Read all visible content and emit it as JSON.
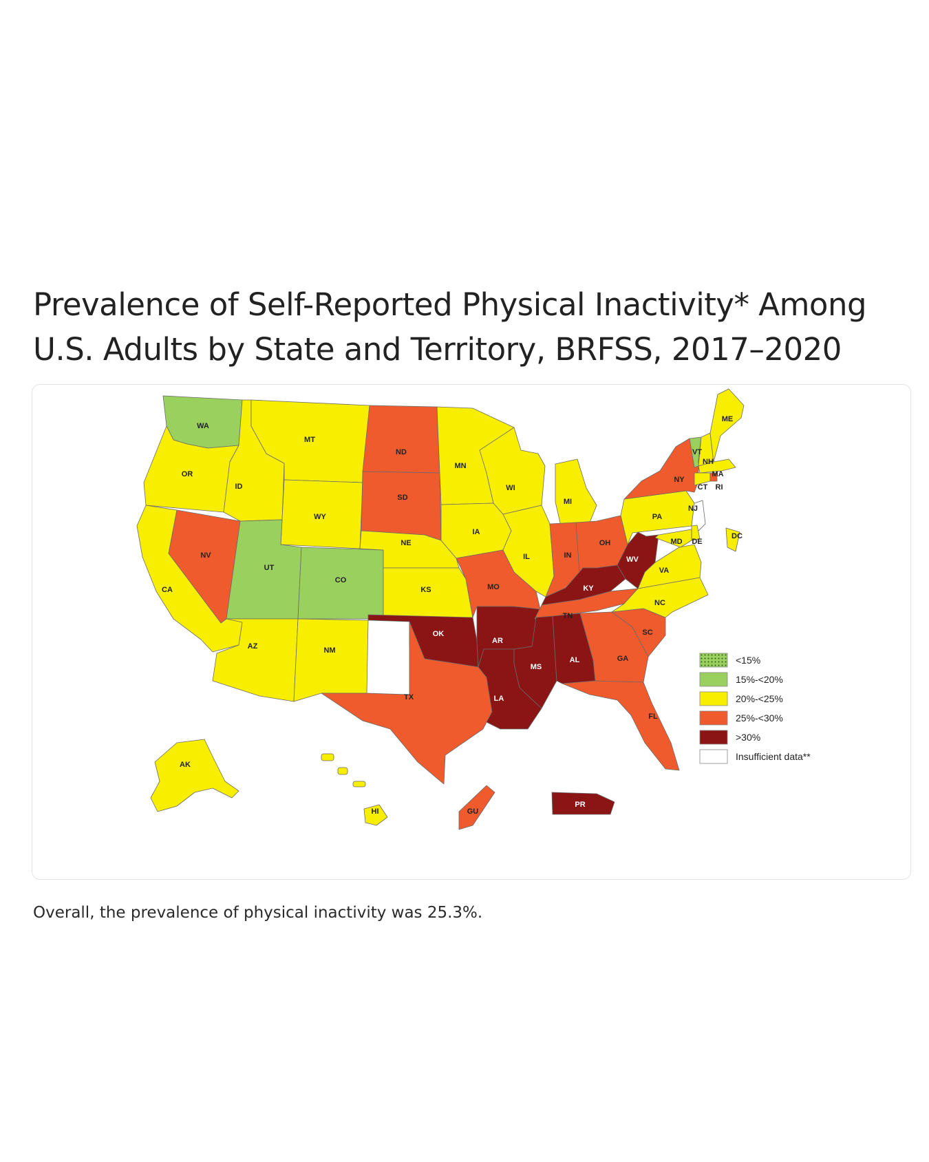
{
  "title_line1": "Prevalence of Self-Reported Physical Inactivity* Among",
  "title_line2": "U.S. Adults by State and Territory, BRFSS, 2017–2020",
  "footnote": "Overall, the prevalence of physical inactivity was 25.3%.",
  "colors": {
    "lt15": "#9ad05e",
    "c15_20": "#9ad05e",
    "c20_25": "#f8ee00",
    "c25_30": "#ef5b2c",
    "ge30": "#8b1414",
    "insufficient": "#ffffff"
  },
  "legend": [
    {
      "key": "lt15",
      "label": "<15%",
      "pattern": "dots"
    },
    {
      "key": "c15_20",
      "label": "15%-<20%"
    },
    {
      "key": "c20_25",
      "label": "20%-<25%"
    },
    {
      "key": "c25_30",
      "label": "25%-<30%"
    },
    {
      "key": "ge30",
      "label": ">30%"
    },
    {
      "key": "insufficient",
      "label": "Insufficient data**"
    }
  ],
  "states": [
    {
      "abbr": "WA",
      "category": "c15_20"
    },
    {
      "abbr": "OR",
      "category": "c20_25"
    },
    {
      "abbr": "CA",
      "category": "c20_25"
    },
    {
      "abbr": "NV",
      "category": "c25_30"
    },
    {
      "abbr": "ID",
      "category": "c20_25"
    },
    {
      "abbr": "MT",
      "category": "c20_25"
    },
    {
      "abbr": "WY",
      "category": "c20_25"
    },
    {
      "abbr": "UT",
      "category": "c15_20"
    },
    {
      "abbr": "CO",
      "category": "c15_20"
    },
    {
      "abbr": "AZ",
      "category": "c20_25"
    },
    {
      "abbr": "NM",
      "category": "c20_25"
    },
    {
      "abbr": "ND",
      "category": "c25_30"
    },
    {
      "abbr": "SD",
      "category": "c25_30"
    },
    {
      "abbr": "NE",
      "category": "c20_25"
    },
    {
      "abbr": "KS",
      "category": "c20_25"
    },
    {
      "abbr": "OK",
      "category": "ge30"
    },
    {
      "abbr": "TX",
      "category": "c25_30"
    },
    {
      "abbr": "MN",
      "category": "c20_25"
    },
    {
      "abbr": "IA",
      "category": "c20_25"
    },
    {
      "abbr": "MO",
      "category": "c25_30"
    },
    {
      "abbr": "AR",
      "category": "ge30"
    },
    {
      "abbr": "LA",
      "category": "ge30"
    },
    {
      "abbr": "WI",
      "category": "c20_25"
    },
    {
      "abbr": "IL",
      "category": "c20_25"
    },
    {
      "abbr": "MI",
      "category": "c20_25"
    },
    {
      "abbr": "IN",
      "category": "c25_30"
    },
    {
      "abbr": "OH",
      "category": "c25_30"
    },
    {
      "abbr": "KY",
      "category": "ge30"
    },
    {
      "abbr": "TN",
      "category": "c25_30"
    },
    {
      "abbr": "MS",
      "category": "ge30"
    },
    {
      "abbr": "AL",
      "category": "ge30"
    },
    {
      "abbr": "GA",
      "category": "c25_30"
    },
    {
      "abbr": "FL",
      "category": "c25_30"
    },
    {
      "abbr": "SC",
      "category": "c25_30"
    },
    {
      "abbr": "NC",
      "category": "c20_25"
    },
    {
      "abbr": "VA",
      "category": "c20_25"
    },
    {
      "abbr": "WV",
      "category": "ge30"
    },
    {
      "abbr": "PA",
      "category": "c20_25"
    },
    {
      "abbr": "NY",
      "category": "c25_30"
    },
    {
      "abbr": "VT",
      "category": "c15_20"
    },
    {
      "abbr": "NH",
      "category": "c20_25"
    },
    {
      "abbr": "ME",
      "category": "c20_25"
    },
    {
      "abbr": "MA",
      "category": "c20_25"
    },
    {
      "abbr": "CT",
      "category": "c20_25"
    },
    {
      "abbr": "RI",
      "category": "c25_30"
    },
    {
      "abbr": "NJ",
      "category": "insufficient"
    },
    {
      "abbr": "DE",
      "category": "c20_25"
    },
    {
      "abbr": "MD",
      "category": "c20_25"
    },
    {
      "abbr": "DC",
      "category": "c20_25"
    },
    {
      "abbr": "AK",
      "category": "c20_25"
    },
    {
      "abbr": "HI",
      "category": "c20_25"
    },
    {
      "abbr": "GU",
      "category": "c25_30"
    },
    {
      "abbr": "PR",
      "category": "ge30"
    }
  ]
}
